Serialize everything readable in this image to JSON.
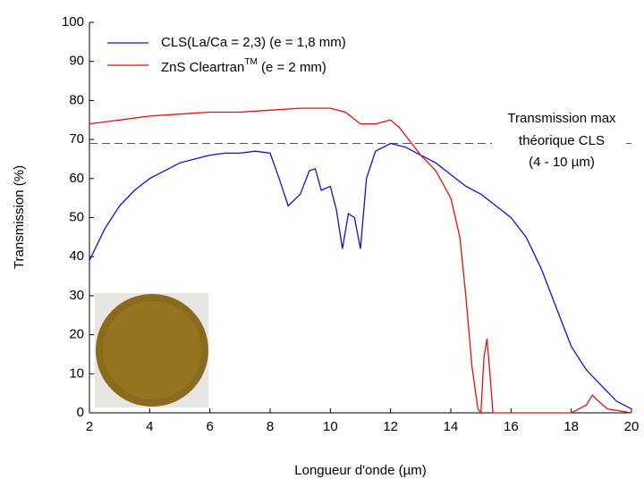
{
  "chart_data": {
    "type": "line",
    "x_label": "Longueur d'onde (µm)",
    "y_label": "Transmission (%)",
    "xlim": [
      2,
      20
    ],
    "xticks": [
      2,
      4,
      6,
      8,
      10,
      12,
      14,
      16,
      18,
      20
    ],
    "ylim": [
      0,
      100
    ],
    "yticks": [
      0,
      10,
      20,
      30,
      40,
      50,
      60,
      70,
      80,
      90,
      100
    ],
    "legend": "upper-left",
    "series": [
      {
        "name": "CLS(La/Ca = 2,3) (e = 1,8 mm)",
        "color": "#1010d0",
        "x": [
          2,
          2.5,
          3,
          3.5,
          4,
          4.5,
          5,
          5.5,
          6,
          6.5,
          7,
          7.5,
          8,
          8.3,
          8.6,
          9,
          9.3,
          9.5,
          9.7,
          10,
          10.2,
          10.4,
          10.6,
          10.8,
          11,
          11.2,
          11.5,
          12,
          12.5,
          13,
          13.5,
          14,
          14.5,
          15,
          15.5,
          16,
          16.5,
          17,
          17.5,
          18,
          18.5,
          19,
          19.5,
          20
        ],
        "values": [
          39,
          47,
          53,
          57,
          60,
          62,
          64,
          65,
          66,
          66.5,
          66.5,
          67,
          66.5,
          60,
          53,
          56,
          62,
          62.5,
          57,
          58,
          52,
          42,
          51,
          50,
          42,
          60,
          67,
          69,
          68,
          66,
          64,
          61,
          58,
          56,
          53,
          50,
          45,
          37,
          27,
          17,
          11,
          7,
          3,
          1
        ]
      },
      {
        "name": "ZnS Cleartran",
        "name_sup": "TM",
        "name_suffix": " (e = 2 mm)",
        "color": "#e01010",
        "x": [
          2,
          3,
          4,
          5,
          6,
          7,
          8,
          9,
          10,
          10.5,
          11,
          11.5,
          12,
          12.3,
          12.7,
          13,
          13.5,
          14,
          14.3,
          14.5,
          14.7,
          14.9,
          15,
          15.1,
          15.2,
          15.3,
          15.4,
          16,
          17,
          18,
          18.5,
          18.7,
          18.9,
          19.2,
          20
        ],
        "values": [
          74,
          75,
          76,
          76.5,
          77,
          77,
          77.5,
          78,
          78,
          77,
          74,
          74,
          75,
          73,
          69,
          66,
          62,
          55,
          45,
          30,
          12,
          1,
          0,
          14,
          19,
          10,
          0,
          0,
          0,
          0,
          2,
          4.5,
          3,
          1,
          0
        ]
      }
    ],
    "annotation": {
      "text": [
        "Transmission max",
        "théorique CLS",
        "(4 - 10 µm)"
      ],
      "y": 69
    }
  }
}
